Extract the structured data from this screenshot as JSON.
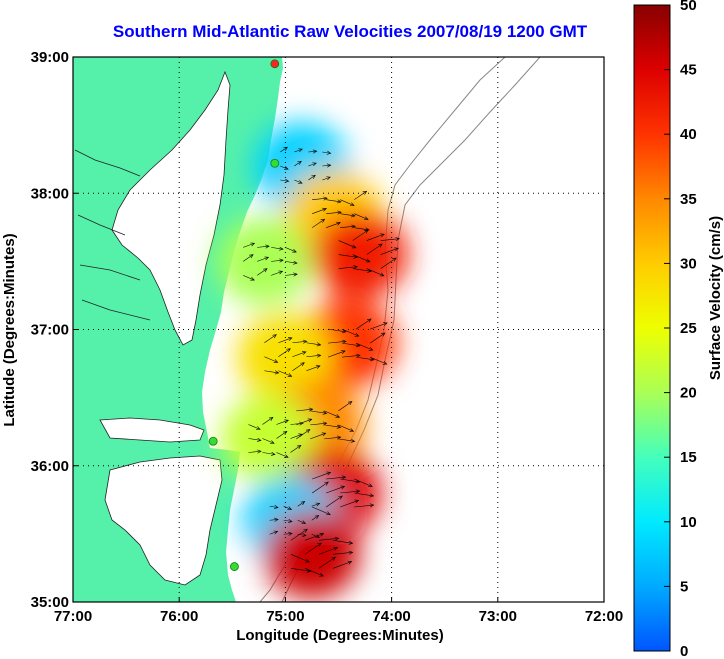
{
  "title": "Southern Mid-Atlantic Raw Velocities 2007/08/19 1200 GMT",
  "xlabel": "Longitude (Degrees:Minutes)",
  "ylabel": "Latitude (Degrees:Minutes)",
  "x_ticks": [
    "77:00",
    "76:00",
    "75:00",
    "74:00",
    "73:00",
    "72:00"
  ],
  "y_ticks": [
    "39:00",
    "38:00",
    "37:00",
    "36:00",
    "35:00"
  ],
  "colorbar": {
    "label": "Surface Velocity (cm/s)",
    "ticks": [
      "0",
      "5",
      "10",
      "15",
      "20",
      "25",
      "30",
      "35",
      "40",
      "45",
      "50"
    ],
    "range": [
      0,
      50
    ],
    "colormap": "jet"
  },
  "colors": {
    "land": "#55f0aa",
    "title": "#0000ff",
    "site_marker": "#33dd33",
    "site_marker_red": "#ff2222"
  },
  "chart_data": {
    "type": "heatmap",
    "title": "Southern Mid-Atlantic Raw Velocities 2007/08/19 1200 GMT",
    "xlabel": "Longitude (Degrees:Minutes)",
    "ylabel": "Latitude (Degrees:Minutes)",
    "xlim": [
      -77.0,
      -72.0
    ],
    "ylim": [
      35.0,
      39.0
    ],
    "grid": true,
    "colorbar_label": "Surface Velocity (cm/s)",
    "colorbar_range": [
      0,
      50
    ],
    "speed_regions": [
      {
        "lon": -74.85,
        "lat": 38.2,
        "speed": 8
      },
      {
        "lon": -74.55,
        "lat": 37.85,
        "speed": 30
      },
      {
        "lon": -74.3,
        "lat": 37.55,
        "speed": 42
      },
      {
        "lon": -75.2,
        "lat": 37.5,
        "speed": 20
      },
      {
        "lon": -74.4,
        "lat": 36.9,
        "speed": 40
      },
      {
        "lon": -75.0,
        "lat": 36.8,
        "speed": 28
      },
      {
        "lon": -74.7,
        "lat": 36.3,
        "speed": 35
      },
      {
        "lon": -75.15,
        "lat": 36.2,
        "speed": 22
      },
      {
        "lon": -74.55,
        "lat": 35.8,
        "speed": 45
      },
      {
        "lon": -74.95,
        "lat": 35.6,
        "speed": 8
      },
      {
        "lon": -74.75,
        "lat": 35.35,
        "speed": 46
      }
    ],
    "radar_sites": [
      {
        "lon": -75.1,
        "lat": 38.95,
        "color": "red"
      },
      {
        "lon": -75.1,
        "lat": 38.22,
        "color": "green"
      },
      {
        "lon": -75.68,
        "lat": 36.18,
        "color": "green"
      },
      {
        "lon": -75.48,
        "lat": 35.26,
        "color": "green"
      }
    ]
  }
}
